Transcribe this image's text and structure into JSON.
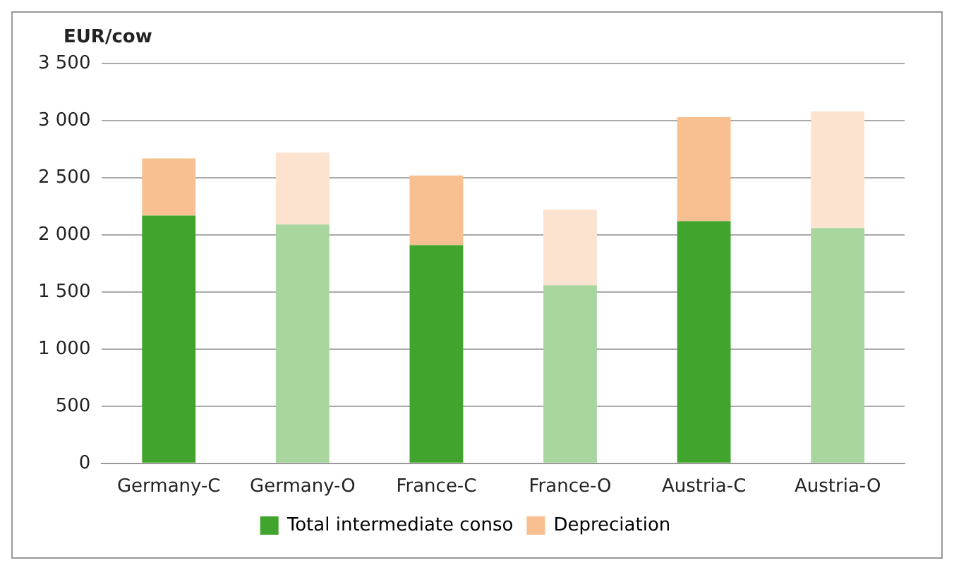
{
  "chart_data": {
    "type": "bar",
    "ylabel": "EUR/cow",
    "categories": [
      "Germany-C",
      "Germany-O",
      "France-C",
      "France-O",
      "Austria-C",
      "Austria-O"
    ],
    "stacked": true,
    "series": [
      {
        "name": "Total intermediate conso",
        "color": "#41a42d",
        "colors": [
          "#41a42d",
          "#a9d69f",
          "#41a42d",
          "#a9d69f",
          "#41a42d",
          "#a9d69f"
        ],
        "values": [
          2170,
          2090,
          1910,
          1560,
          2120,
          2060
        ]
      },
      {
        "name": "Depreciation",
        "color": "#f8bf90",
        "colors": [
          "#f8bf90",
          "#fce3cf",
          "#f8bf90",
          "#fce3cf",
          "#f8bf90",
          "#fce3cf"
        ],
        "values": [
          500,
          630,
          610,
          660,
          910,
          1020
        ]
      }
    ],
    "ylim": [
      0,
      3500
    ],
    "yticks": [
      0,
      500,
      {
        "value": 1000,
        "label": "1 000"
      },
      {
        "value": 1500,
        "label": "1 500"
      },
      {
        "value": 2000,
        "label": "2 000"
      },
      {
        "value": 2500,
        "label": "2 500"
      },
      {
        "value": 3000,
        "label": "3 000"
      },
      {
        "value": 3500,
        "label": "3 500"
      }
    ],
    "grid": "y",
    "legend": "bottom"
  }
}
